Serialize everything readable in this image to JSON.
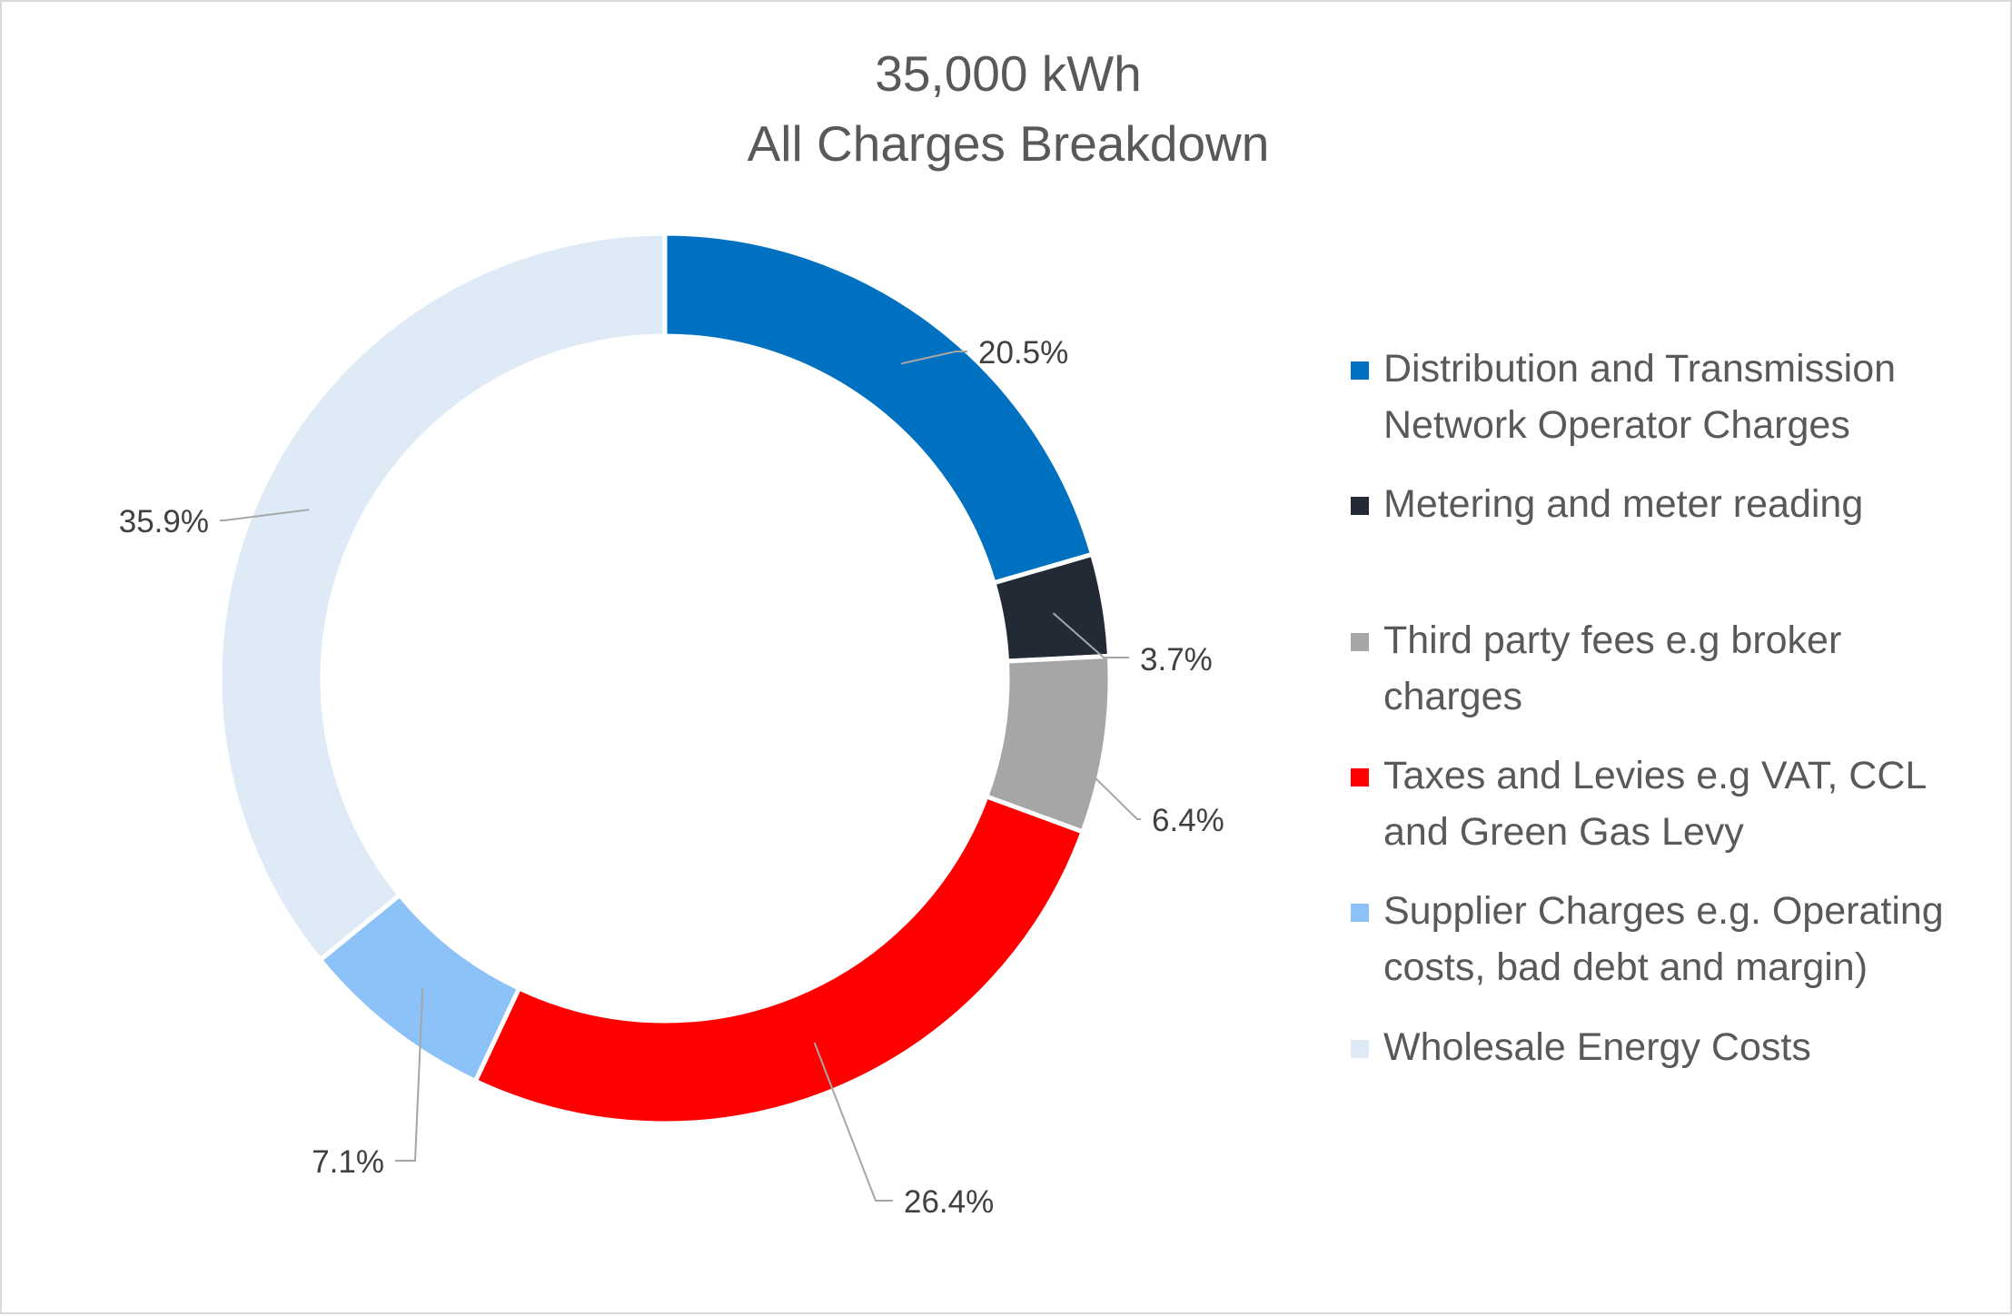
{
  "chart_data": {
    "type": "pie",
    "subtype": "donut",
    "title": [
      "35,000 kWh",
      "All Charges Breakdown"
    ],
    "legend_position": "right",
    "slices": [
      {
        "label": [
          "Distribution and Transmission",
          "Network Operator Charges"
        ],
        "value": 20.5,
        "value_label": "20.5%",
        "color": "#0070C0"
      },
      {
        "label": [
          "Metering and meter reading"
        ],
        "value": 3.7,
        "value_label": "3.7%",
        "color": "#222A35"
      },
      {
        "label": [
          "Third party fees e.g broker",
          "charges"
        ],
        "value": 6.4,
        "value_label": "6.4%",
        "color": "#A6A6A6"
      },
      {
        "label": [
          "Taxes and Levies e.g VAT, CCL",
          "and Green Gas Levy"
        ],
        "value": 26.4,
        "value_label": "26.4%",
        "color": "#FF0000"
      },
      {
        "label": [
          "Supplier Charges e.g. Operating",
          "costs, bad debt and margin)"
        ],
        "value": 7.1,
        "value_label": "7.1%",
        "color": "#8CC2F8"
      },
      {
        "label": [
          "Wholesale Energy Costs"
        ],
        "value": 35.9,
        "value_label": "35.9%",
        "color": "#DEEBF7"
      }
    ]
  }
}
